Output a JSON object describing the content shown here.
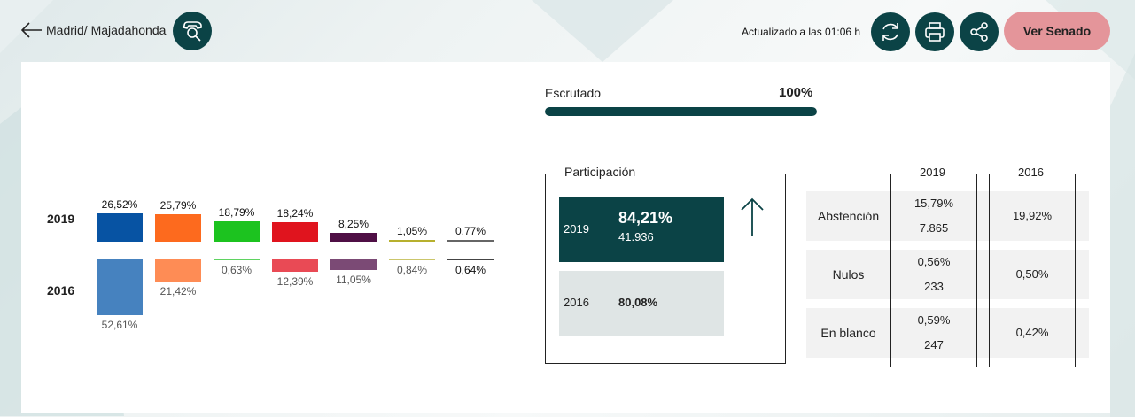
{
  "header": {
    "location": "Madrid/ Majadahonda",
    "updated": "Actualizado a las 01:06 h",
    "senado_label": "Ver Senado"
  },
  "scrutiny": {
    "label": "Escrutado",
    "value": "100%",
    "progress": 1.0
  },
  "chart_data": {
    "type": "bar",
    "series": [
      {
        "name": "2019",
        "labels": [
          "26,52%",
          "25,79%",
          "18,79%",
          "18,24%",
          "8,25%",
          "1,05%",
          "0,77%"
        ],
        "values": [
          26.52,
          25.79,
          18.79,
          18.24,
          8.25,
          1.05,
          0.77
        ]
      },
      {
        "name": "2016",
        "labels": [
          "52,61%",
          "21,42%",
          "0,63%",
          "12,39%",
          "11,05%",
          "0,84%",
          "0,64%"
        ],
        "values": [
          52.61,
          21.42,
          0.63,
          12.39,
          11.05,
          0.84,
          0.64
        ]
      }
    ],
    "colors_2019": [
      "#0753a3",
      "#fd6a1e",
      "#1cc31f",
      "#e0141e",
      "#4f0f45",
      "#b7b02e",
      "#666666"
    ],
    "colors_2016": [
      "#4682bf",
      "#fe8c55",
      "#5fd361",
      "#e94a55",
      "#7b4a75",
      "#cbc66b",
      "#444444"
    ]
  },
  "years": {
    "y2019": "2019",
    "y2016": "2016"
  },
  "participation": {
    "title": "Participación",
    "y2019": {
      "year": "2019",
      "pct": "84,21%",
      "votes": "41.936"
    },
    "y2016": {
      "year": "2016",
      "pct": "80,08%"
    }
  },
  "stats": {
    "col2019": "2019",
    "col2016": "2016",
    "rows": [
      {
        "name": "Abstención",
        "pct2019": "15,79%",
        "votes2019": "7.865",
        "pct2016": "19,92%"
      },
      {
        "name": "Nulos",
        "pct2019": "0,56%",
        "votes2019": "233",
        "pct2016": "0,50%"
      },
      {
        "name": "En blanco",
        "pct2019": "0,59%",
        "votes2019": "247",
        "pct2016": "0,42%"
      }
    ]
  },
  "icons": [
    "back-arrow-icon",
    "phone-search-icon",
    "refresh-icon",
    "print-icon",
    "share-icon",
    "arrow-up-icon"
  ]
}
